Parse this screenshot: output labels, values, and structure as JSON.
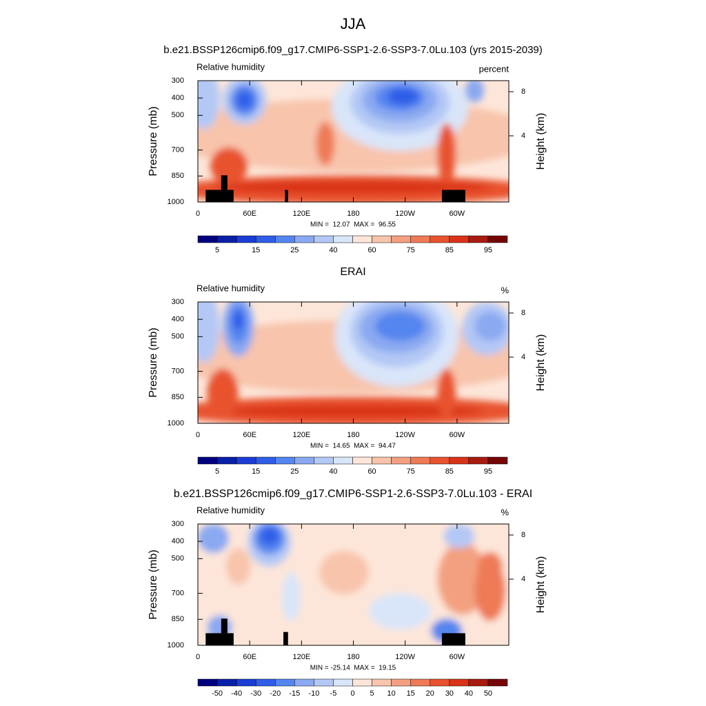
{
  "title": "JJA",
  "chart_data": [
    {
      "type": "contour",
      "title": "b.e21.BSSP126cmip6.f09_g17.CMIP6-SSP1-2.6-SSP3-7.0Lu.103 (yrs 2015-2039)",
      "left_label": "Relative humidity",
      "units": "percent",
      "ylabel": "Pressure (mb)",
      "y2label": "Height (km)",
      "xlim": [
        0,
        360
      ],
      "xticks": [
        0,
        {
          "value": 60,
          "label": "60E"
        },
        {
          "value": 120,
          "label": "120E"
        },
        180,
        {
          "value": 240,
          "label": "120W"
        },
        {
          "value": 300,
          "label": "60W"
        }
      ],
      "ylim": [
        300,
        1000
      ],
      "yticks": [
        300,
        400,
        500,
        700,
        850,
        1000
      ],
      "y2lim": [
        -2,
        9
      ],
      "y2ticks": [
        4,
        8
      ],
      "stats": "MIN =  12.07  MAX =  96.55",
      "colorbar": {
        "colors": [
          "#00007f",
          "#0a1fa8",
          "#1b3dd6",
          "#2f5de8",
          "#5585ef",
          "#8aa9f1",
          "#b3c8f5",
          "#d9e5f9",
          "#fde6d9",
          "#f8c4ac",
          "#f3a080",
          "#ee7a56",
          "#e8522f",
          "#d93319",
          "#a81b10",
          "#760505"
        ],
        "labels": [
          5,
          15,
          25,
          40,
          60,
          75,
          85,
          95
        ]
      }
    },
    {
      "type": "contour",
      "title": "ERAI",
      "left_label": "Relative humidity",
      "units": "%",
      "ylabel": "Pressure (mb)",
      "y2label": "Height (km)",
      "xlim": [
        0,
        360
      ],
      "xticks": [
        0,
        {
          "value": 60,
          "label": "60E"
        },
        {
          "value": 120,
          "label": "120E"
        },
        180,
        {
          "value": 240,
          "label": "120W"
        },
        {
          "value": 300,
          "label": "60W"
        }
      ],
      "ylim": [
        300,
        1000
      ],
      "yticks": [
        300,
        400,
        500,
        700,
        850,
        1000
      ],
      "y2lim": [
        -2,
        9
      ],
      "y2ticks": [
        4,
        8
      ],
      "stats": "MIN =  14.65  MAX =  94.47",
      "colorbar": {
        "colors": [
          "#00007f",
          "#0a1fa8",
          "#1b3dd6",
          "#2f5de8",
          "#5585ef",
          "#8aa9f1",
          "#b3c8f5",
          "#d9e5f9",
          "#fde6d9",
          "#f8c4ac",
          "#f3a080",
          "#ee7a56",
          "#e8522f",
          "#d93319",
          "#a81b10",
          "#760505"
        ],
        "labels": [
          5,
          15,
          25,
          40,
          60,
          75,
          85,
          95
        ]
      }
    },
    {
      "type": "contour",
      "title": "b.e21.BSSP126cmip6.f09_g17.CMIP6-SSP1-2.6-SSP3-7.0Lu.103 - ERAI",
      "left_label": "Relative humidity",
      "units": "%",
      "ylabel": "Pressure (mb)",
      "y2label": "Height (km)",
      "xlim": [
        0,
        360
      ],
      "xticks": [
        0,
        {
          "value": 60,
          "label": "60E"
        },
        {
          "value": 120,
          "label": "120E"
        },
        180,
        {
          "value": 240,
          "label": "120W"
        },
        {
          "value": 300,
          "label": "60W"
        }
      ],
      "ylim": [
        300,
        1000
      ],
      "yticks": [
        300,
        400,
        500,
        700,
        850,
        1000
      ],
      "y2lim": [
        -2,
        9
      ],
      "y2ticks": [
        4,
        8
      ],
      "stats": "MIN = -25.14  MAX =  19.15",
      "colorbar": {
        "colors": [
          "#00007f",
          "#0a1fa8",
          "#1b3dd6",
          "#2f5de8",
          "#5585ef",
          "#8aa9f1",
          "#b3c8f5",
          "#d9e5f9",
          "#fde6d9",
          "#f8c4ac",
          "#f3a080",
          "#ee7a56",
          "#e8522f",
          "#d93319",
          "#a81b10",
          "#760505"
        ],
        "labels": [
          -50,
          -40,
          -30,
          -20,
          -15,
          -10,
          -5,
          0,
          5,
          10,
          15,
          20,
          30,
          40,
          50
        ]
      }
    }
  ]
}
